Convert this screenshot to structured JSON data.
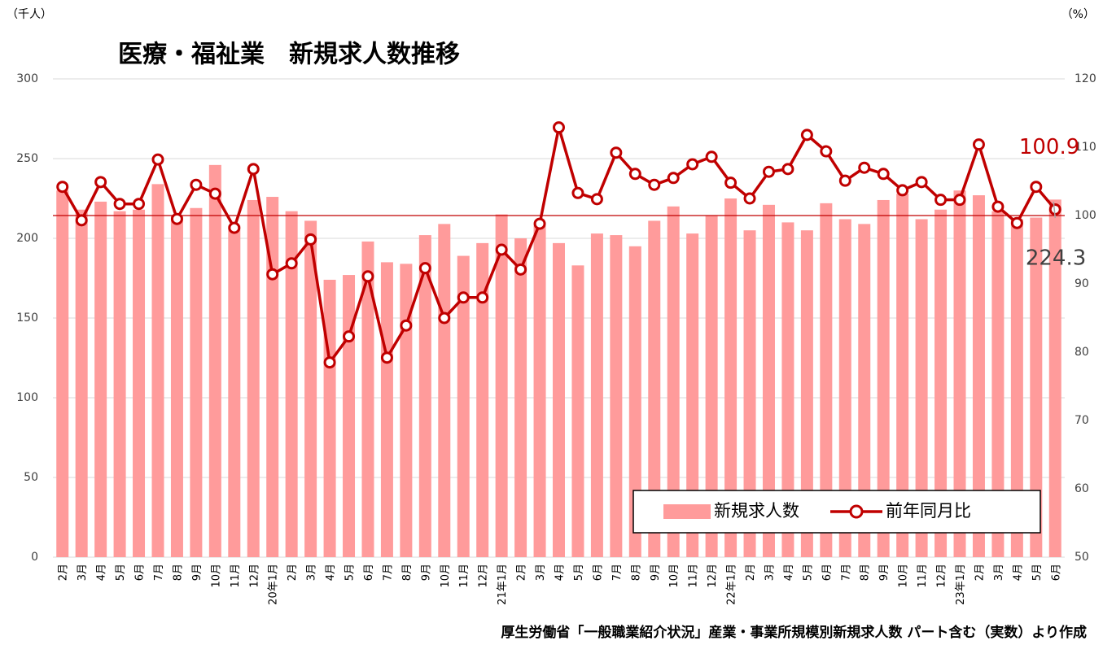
{
  "chart_data": {
    "type": "bar_line",
    "title": "医療・福祉業　新規求人数推移",
    "y_unit": "（千人）",
    "y2_unit": "（%）",
    "source_note": "厚生労働省「一般職業紹介状況」産業・事業所規模別新規求人数 パート含む（実数）より作成",
    "categories": [
      "2月",
      "3月",
      "4月",
      "5月",
      "6月",
      "7月",
      "8月",
      "9月",
      "10月",
      "11月",
      "12月",
      "20年1月",
      "2月",
      "3月",
      "4月",
      "5月",
      "6月",
      "7月",
      "8月",
      "9月",
      "10月",
      "11月",
      "12月",
      "21年1月",
      "2月",
      "3月",
      "4月",
      "5月",
      "6月",
      "7月",
      "8月",
      "9月",
      "10月",
      "11月",
      "12月",
      "22年1月",
      "2月",
      "3月",
      "4月",
      "5月",
      "6月",
      "7月",
      "8月",
      "9月",
      "10月",
      "11月",
      "12月",
      "23年1月",
      "2月",
      "3月",
      "4月",
      "5月",
      "6月"
    ],
    "series": [
      {
        "name": "新規求人数",
        "type": "bar",
        "color": "#ff9b9b",
        "values": [
          230,
          218,
          223,
          217,
          218,
          234,
          214,
          219,
          246,
          208,
          224,
          226,
          217,
          211,
          174,
          177,
          198,
          185,
          184,
          202,
          209,
          189,
          197,
          215,
          200,
          208,
          197,
          183,
          203,
          202,
          195,
          211,
          220,
          203,
          214,
          225,
          205,
          221,
          210,
          205,
          222,
          212,
          209,
          224,
          228,
          212,
          218,
          230,
          227,
          217,
          212,
          213,
          224.3
        ],
        "value_labels": [
          null,
          null,
          null,
          null,
          null,
          null,
          null,
          null,
          null,
          null,
          null,
          null,
          null,
          null,
          null,
          null,
          null,
          null,
          null,
          null,
          null,
          null,
          null,
          null,
          null,
          null,
          null,
          null,
          null,
          null,
          null,
          null,
          null,
          null,
          null,
          null,
          null,
          null,
          null,
          null,
          null,
          null,
          null,
          null,
          null,
          null,
          null,
          null,
          null,
          null,
          null,
          null,
          "224.3"
        ]
      },
      {
        "name": "前年同月比",
        "type": "line",
        "axis": "y2",
        "color": "#c00000",
        "values": [
          104.2,
          99.3,
          104.9,
          101.7,
          101.7,
          108.2,
          99.5,
          104.5,
          103.2,
          98.2,
          106.8,
          91.4,
          93.0,
          96.5,
          78.5,
          82.3,
          91.1,
          79.2,
          83.9,
          92.3,
          85.0,
          88.0,
          88.0,
          95.0,
          92.1,
          98.8,
          112.9,
          103.3,
          102.4,
          109.2,
          106.1,
          104.5,
          105.5,
          107.5,
          108.6,
          104.8,
          102.5,
          106.4,
          106.8,
          111.8,
          109.4,
          105.1,
          107.0,
          106.1,
          103.7,
          104.9,
          102.3,
          102.3,
          110.4,
          101.3,
          98.9,
          104.2,
          100.9
        ],
        "value_labels": [
          null,
          null,
          null,
          null,
          null,
          null,
          null,
          null,
          null,
          null,
          null,
          null,
          null,
          null,
          null,
          null,
          null,
          null,
          null,
          null,
          null,
          null,
          null,
          null,
          null,
          null,
          null,
          null,
          null,
          null,
          null,
          null,
          null,
          null,
          null,
          null,
          null,
          null,
          null,
          null,
          null,
          null,
          null,
          null,
          null,
          null,
          null,
          null,
          null,
          null,
          null,
          null,
          "100.9"
        ]
      }
    ],
    "ylim": [
      0,
      300
    ],
    "yticks": [
      0,
      50,
      100,
      150,
      200,
      250,
      300
    ],
    "y2lim": [
      50,
      120
    ],
    "y2ticks": [
      50,
      60,
      70,
      80,
      90,
      100,
      110,
      120
    ],
    "reference_line": {
      "axis": "y2",
      "value": 100,
      "color": "#c00000"
    },
    "grid": true,
    "legend": "bottom-right"
  }
}
